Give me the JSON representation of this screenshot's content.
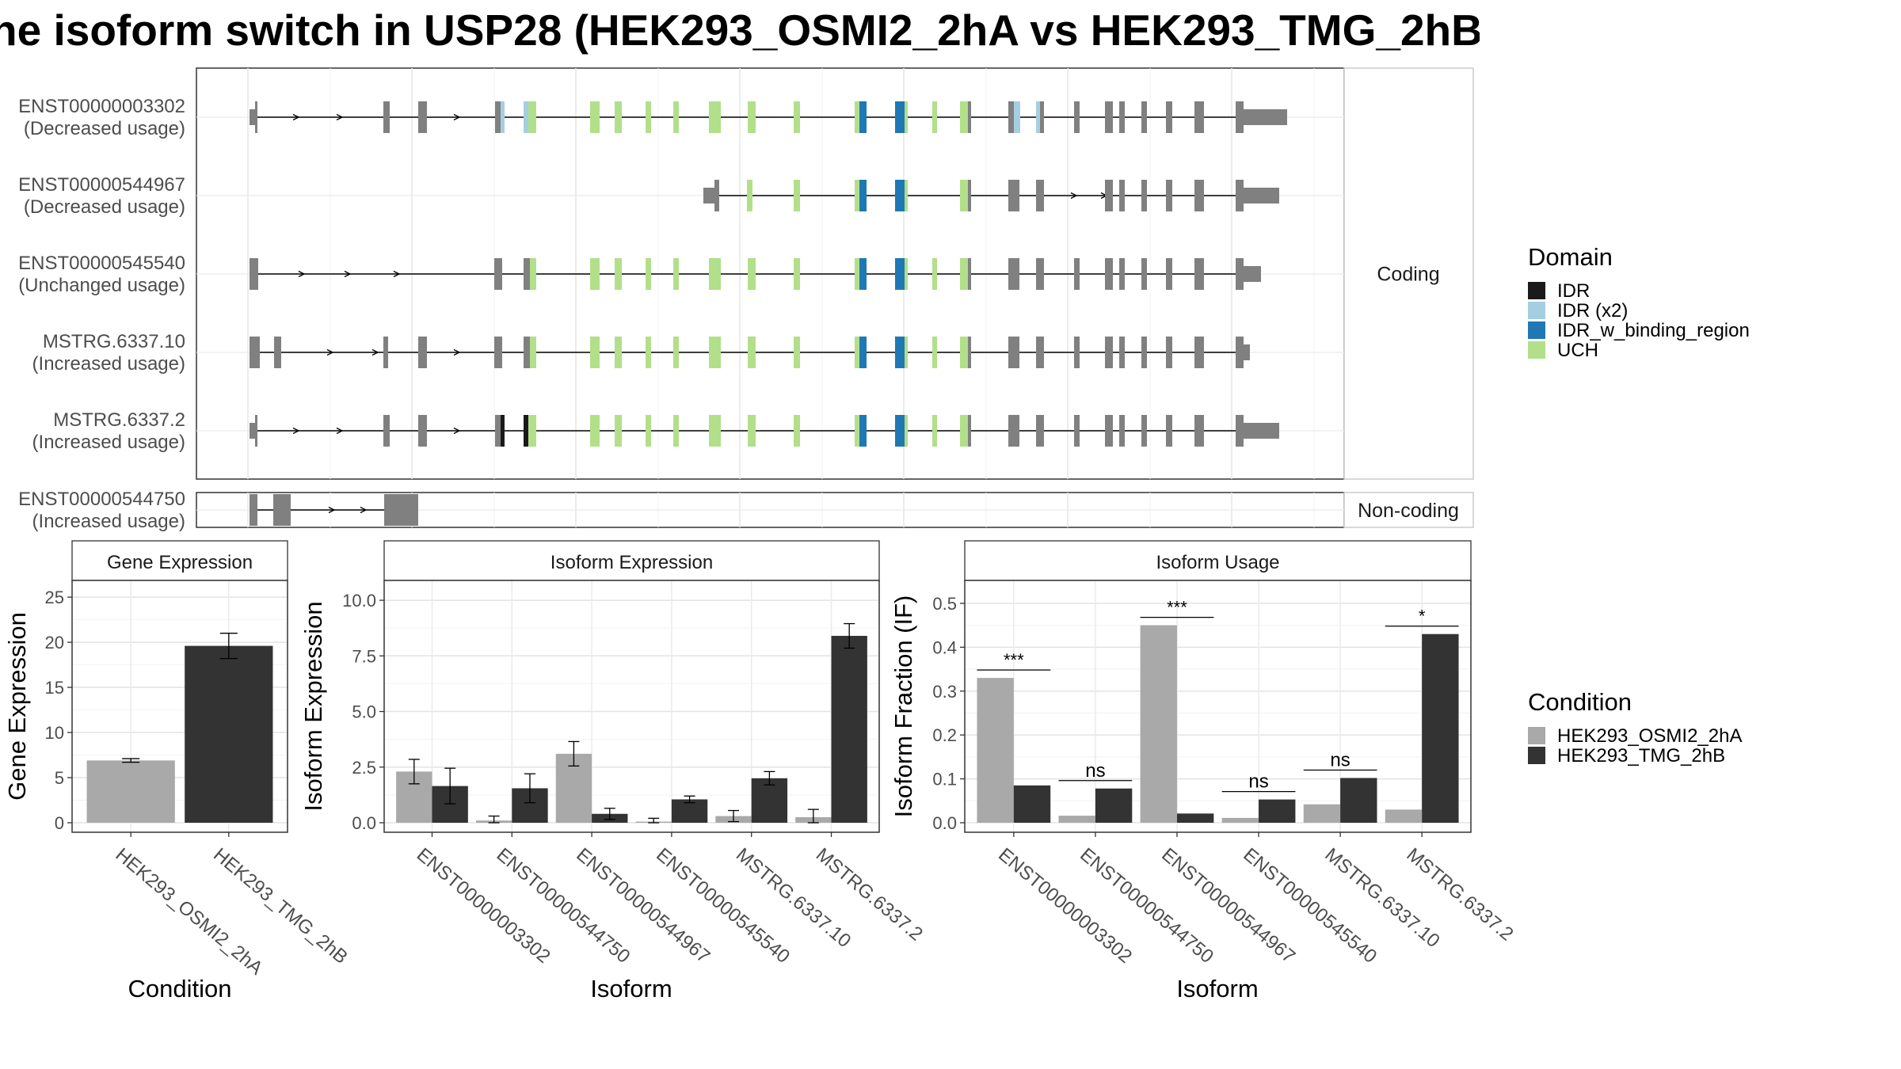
{
  "title": "he isoform switch in USP28 (HEK293_OSMI2_2hA vs HEK293_TMG_2hB",
  "colors": {
    "intron": "#000000",
    "exon": "#808080",
    "IDR": "#1a1a1a",
    "IDR (x2)": "#a6cee3",
    "IDR_w_binding_region": "#1f78b4",
    "UCH": "#b2df8a",
    "cond1": "#a9a9a9",
    "cond2": "#333333"
  },
  "facets": {
    "coding": "Coding",
    "noncoding": "Non-coding"
  },
  "domain_legend": {
    "title": "Domain",
    "items": [
      "IDR",
      "IDR (x2)",
      "IDR_w_binding_region",
      "UCH"
    ]
  },
  "condition_legend": {
    "title": "Condition",
    "items": [
      "HEK293_OSMI2_2hA",
      "HEK293_TMG_2hB"
    ]
  },
  "transcripts": [
    {
      "id": "ENST00000003302",
      "usage": "(Decreased usage)",
      "facet": "coding",
      "span": [
        315,
        1625
      ],
      "arrows": [
        375,
        430,
        578
      ],
      "segs": [
        [
          315,
          322,
          "e"
        ],
        [
          322,
          325,
          "e"
        ],
        [
          484,
          492,
          "e"
        ],
        [
          528,
          539,
          "e"
        ],
        [
          625,
          632,
          "e"
        ],
        [
          632,
          637,
          "IDR (x2)"
        ],
        [
          661,
          667,
          "IDR (x2)"
        ],
        [
          667,
          677,
          "UCH"
        ],
        [
          745,
          757,
          "UCH"
        ],
        [
          776,
          785,
          "UCH"
        ],
        [
          815,
          822,
          "UCH"
        ],
        [
          850,
          857,
          "UCH"
        ],
        [
          895,
          910,
          "UCH"
        ],
        [
          944,
          954,
          "UCH"
        ],
        [
          1002,
          1010,
          "UCH"
        ],
        [
          1079,
          1085,
          "UCH"
        ],
        [
          1085,
          1094,
          "IDR_w_binding_region"
        ],
        [
          1130,
          1142,
          "IDR_w_binding_region"
        ],
        [
          1142,
          1146,
          "UCH"
        ],
        [
          1177,
          1183,
          "UCH"
        ],
        [
          1212,
          1222,
          "UCH"
        ],
        [
          1222,
          1226,
          "e"
        ],
        [
          1273,
          1280,
          "e"
        ],
        [
          1280,
          1288,
          "IDR (x2)"
        ],
        [
          1308,
          1313,
          "IDR (x2)"
        ],
        [
          1313,
          1318,
          "e"
        ],
        [
          1356,
          1363,
          "e"
        ],
        [
          1395,
          1405,
          "e"
        ],
        [
          1413,
          1420,
          "e"
        ],
        [
          1441,
          1448,
          "e"
        ],
        [
          1472,
          1480,
          "e"
        ],
        [
          1508,
          1520,
          "e"
        ],
        [
          1560,
          1570,
          "e"
        ],
        [
          1570,
          1625,
          "e"
        ]
      ]
    },
    {
      "id": "ENST00000544967",
      "usage": "(Decreased usage)",
      "facet": "coding",
      "span": [
        888,
        1615
      ],
      "arrows": [
        1357,
        1395
      ],
      "segs": [
        [
          888,
          902,
          "e"
        ],
        [
          902,
          908,
          "e"
        ],
        [
          943,
          950,
          "UCH"
        ],
        [
          1002,
          1010,
          "UCH"
        ],
        [
          1079,
          1085,
          "UCH"
        ],
        [
          1085,
          1094,
          "IDR_w_binding_region"
        ],
        [
          1130,
          1142,
          "IDR_w_binding_region"
        ],
        [
          1142,
          1146,
          "UCH"
        ],
        [
          1212,
          1222,
          "UCH"
        ],
        [
          1222,
          1226,
          "e"
        ],
        [
          1273,
          1287,
          "e"
        ],
        [
          1308,
          1318,
          "e"
        ],
        [
          1395,
          1405,
          "e"
        ],
        [
          1413,
          1420,
          "e"
        ],
        [
          1441,
          1448,
          "e"
        ],
        [
          1472,
          1480,
          "e"
        ],
        [
          1508,
          1520,
          "e"
        ],
        [
          1560,
          1570,
          "e"
        ],
        [
          1570,
          1615,
          "e"
        ]
      ]
    },
    {
      "id": "ENST00000545540",
      "usage": "(Unchanged usage)",
      "facet": "coding",
      "span": [
        315,
        1592
      ],
      "arrows": [
        382,
        440,
        502
      ],
      "segs": [
        [
          315,
          326,
          "e"
        ],
        [
          624,
          634,
          "e"
        ],
        [
          661,
          669,
          "e"
        ],
        [
          669,
          677,
          "UCH"
        ],
        [
          745,
          757,
          "UCH"
        ],
        [
          776,
          785,
          "UCH"
        ],
        [
          815,
          822,
          "UCH"
        ],
        [
          850,
          857,
          "UCH"
        ],
        [
          895,
          910,
          "UCH"
        ],
        [
          944,
          954,
          "UCH"
        ],
        [
          1002,
          1010,
          "UCH"
        ],
        [
          1079,
          1085,
          "UCH"
        ],
        [
          1085,
          1094,
          "IDR_w_binding_region"
        ],
        [
          1130,
          1142,
          "IDR_w_binding_region"
        ],
        [
          1142,
          1146,
          "UCH"
        ],
        [
          1177,
          1183,
          "UCH"
        ],
        [
          1212,
          1222,
          "UCH"
        ],
        [
          1222,
          1226,
          "e"
        ],
        [
          1273,
          1287,
          "e"
        ],
        [
          1308,
          1318,
          "e"
        ],
        [
          1356,
          1363,
          "e"
        ],
        [
          1395,
          1405,
          "e"
        ],
        [
          1413,
          1420,
          "e"
        ],
        [
          1441,
          1448,
          "e"
        ],
        [
          1472,
          1480,
          "e"
        ],
        [
          1508,
          1520,
          "e"
        ],
        [
          1560,
          1570,
          "e"
        ],
        [
          1570,
          1592,
          "e"
        ]
      ]
    },
    {
      "id": "MSTRG.6337.10",
      "usage": "(Increased usage)",
      "facet": "coding",
      "span": [
        315,
        1578
      ],
      "arrows": [
        418,
        475,
        578
      ],
      "segs": [
        [
          315,
          328,
          "e"
        ],
        [
          346,
          355,
          "e"
        ],
        [
          484,
          490,
          "e"
        ],
        [
          528,
          539,
          "e"
        ],
        [
          624,
          634,
          "e"
        ],
        [
          661,
          669,
          "e"
        ],
        [
          669,
          677,
          "UCH"
        ],
        [
          745,
          757,
          "UCH"
        ],
        [
          776,
          785,
          "UCH"
        ],
        [
          815,
          822,
          "UCH"
        ],
        [
          850,
          857,
          "UCH"
        ],
        [
          895,
          910,
          "UCH"
        ],
        [
          944,
          954,
          "UCH"
        ],
        [
          1002,
          1010,
          "UCH"
        ],
        [
          1079,
          1085,
          "UCH"
        ],
        [
          1085,
          1094,
          "IDR_w_binding_region"
        ],
        [
          1130,
          1142,
          "IDR_w_binding_region"
        ],
        [
          1142,
          1146,
          "UCH"
        ],
        [
          1177,
          1183,
          "UCH"
        ],
        [
          1212,
          1222,
          "UCH"
        ],
        [
          1222,
          1226,
          "e"
        ],
        [
          1273,
          1287,
          "e"
        ],
        [
          1308,
          1318,
          "e"
        ],
        [
          1356,
          1363,
          "e"
        ],
        [
          1395,
          1405,
          "e"
        ],
        [
          1413,
          1420,
          "e"
        ],
        [
          1441,
          1448,
          "e"
        ],
        [
          1472,
          1480,
          "e"
        ],
        [
          1508,
          1520,
          "e"
        ],
        [
          1560,
          1570,
          "e"
        ],
        [
          1570,
          1578,
          "e"
        ]
      ]
    },
    {
      "id": "MSTRG.6337.2",
      "usage": "(Increased usage)",
      "facet": "coding",
      "span": [
        315,
        1615
      ],
      "arrows": [
        375,
        430,
        578
      ],
      "segs": [
        [
          315,
          322,
          "e"
        ],
        [
          322,
          325,
          "e"
        ],
        [
          484,
          492,
          "e"
        ],
        [
          528,
          539,
          "e"
        ],
        [
          625,
          632,
          "e"
        ],
        [
          632,
          637,
          "IDR"
        ],
        [
          661,
          667,
          "IDR"
        ],
        [
          667,
          677,
          "UCH"
        ],
        [
          745,
          757,
          "UCH"
        ],
        [
          776,
          785,
          "UCH"
        ],
        [
          815,
          822,
          "UCH"
        ],
        [
          850,
          857,
          "UCH"
        ],
        [
          895,
          910,
          "UCH"
        ],
        [
          944,
          954,
          "UCH"
        ],
        [
          1002,
          1010,
          "UCH"
        ],
        [
          1079,
          1085,
          "UCH"
        ],
        [
          1085,
          1094,
          "IDR_w_binding_region"
        ],
        [
          1130,
          1142,
          "IDR_w_binding_region"
        ],
        [
          1142,
          1146,
          "UCH"
        ],
        [
          1177,
          1183,
          "UCH"
        ],
        [
          1212,
          1222,
          "UCH"
        ],
        [
          1222,
          1226,
          "e"
        ],
        [
          1273,
          1287,
          "e"
        ],
        [
          1308,
          1318,
          "e"
        ],
        [
          1356,
          1363,
          "e"
        ],
        [
          1395,
          1405,
          "e"
        ],
        [
          1413,
          1420,
          "e"
        ],
        [
          1441,
          1448,
          "e"
        ],
        [
          1472,
          1480,
          "e"
        ],
        [
          1508,
          1520,
          "e"
        ],
        [
          1560,
          1570,
          "e"
        ],
        [
          1570,
          1615,
          "e"
        ]
      ]
    },
    {
      "id": "ENST00000544750",
      "usage": "(Increased usage)",
      "facet": "noncoding",
      "span": [
        315,
        528
      ],
      "arrows": [
        420,
        460
      ],
      "segs": [
        [
          315,
          325,
          "e"
        ],
        [
          345,
          367,
          "e"
        ],
        [
          485,
          492,
          "e"
        ],
        [
          492,
          528,
          "e"
        ]
      ]
    }
  ],
  "chart_data": [
    {
      "type": "bar",
      "title": "Gene Expression",
      "xlabel": "Condition",
      "ylabel": "Gene Expression",
      "ylim": [
        0,
        26.5
      ],
      "yticks": [
        0,
        5,
        10,
        15,
        20,
        25
      ],
      "categories": [
        "HEK293_OSMI2_2hA",
        "HEK293_TMG_2hB"
      ],
      "values": [
        6.9,
        19.6
      ],
      "err": [
        0.2,
        1.4
      ],
      "series_colors": [
        "#a9a9a9",
        "#333333"
      ]
    },
    {
      "type": "bar",
      "title": "Isoform Expression",
      "xlabel": "Isoform",
      "ylabel": "Isoform Expression",
      "ylim": [
        0,
        10.75
      ],
      "yticks": [
        0.0,
        2.5,
        5.0,
        7.5,
        10.0
      ],
      "tick_decimals": 1,
      "categories": [
        "ENST00000003302",
        "ENST00000544750",
        "ENST00000544967",
        "ENST00000545540",
        "MSTRG.6337.10",
        "MSTRG.6337.2"
      ],
      "series": [
        {
          "name": "HEK293_OSMI2_2hA",
          "values": [
            2.3,
            0.1,
            3.1,
            0.05,
            0.3,
            0.25
          ],
          "err": [
            0.55,
            0.2,
            0.55,
            0.15,
            0.25,
            0.35
          ]
        },
        {
          "name": "HEK293_TMG_2hB",
          "values": [
            1.65,
            1.55,
            0.4,
            1.05,
            2.0,
            8.4
          ],
          "err": [
            0.8,
            0.65,
            0.25,
            0.15,
            0.3,
            0.55
          ]
        }
      ]
    },
    {
      "type": "bar",
      "title": "Isoform Usage",
      "xlabel": "Isoform",
      "ylabel": "Isoform Fraction (IF)",
      "ylim": [
        0,
        0.545
      ],
      "yticks": [
        0.0,
        0.1,
        0.2,
        0.3,
        0.4,
        0.5
      ],
      "tick_decimals": 1,
      "categories": [
        "ENST00000003302",
        "ENST00000544750",
        "ENST00000544967",
        "ENST00000545540",
        "MSTRG.6337.10",
        "MSTRG.6337.2"
      ],
      "series": [
        {
          "name": "HEK293_OSMI2_2hA",
          "values": [
            0.33,
            0.016,
            0.45,
            0.011,
            0.042,
            0.03
          ]
        },
        {
          "name": "HEK293_TMG_2hB",
          "values": [
            0.085,
            0.078,
            0.021,
            0.053,
            0.102,
            0.43
          ]
        }
      ],
      "significance": [
        "***",
        "ns",
        "***",
        "ns",
        "ns",
        "*"
      ]
    }
  ]
}
